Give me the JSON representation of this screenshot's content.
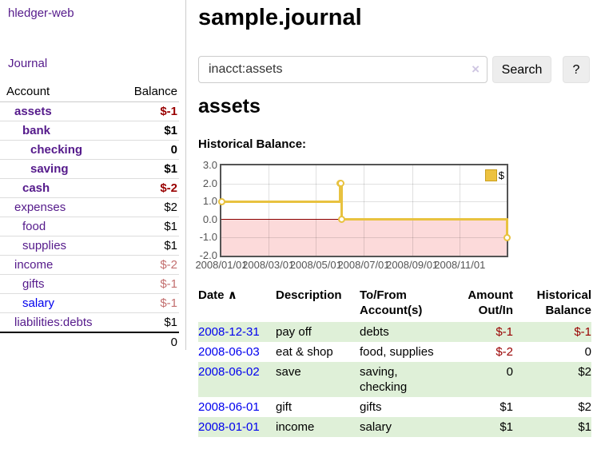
{
  "sidebar": {
    "app_title": "hledger-web",
    "nav": {
      "journal": "Journal"
    },
    "accounts": {
      "col_account": "Account",
      "col_balance": "Balance",
      "rows": [
        {
          "name": "assets",
          "balance": "$-1"
        },
        {
          "name": "bank",
          "balance": "$1"
        },
        {
          "name": "checking",
          "balance": "0"
        },
        {
          "name": "saving",
          "balance": "$1"
        },
        {
          "name": "cash",
          "balance": "$-2"
        },
        {
          "name": "expenses",
          "balance": "$2"
        },
        {
          "name": "food",
          "balance": "$1"
        },
        {
          "name": "supplies",
          "balance": "$1"
        },
        {
          "name": "income",
          "balance": "$-2"
        },
        {
          "name": "gifts",
          "balance": "$-1"
        },
        {
          "name": "salary",
          "balance": "$-1"
        },
        {
          "name": "liabilities:debts",
          "balance": "$1"
        }
      ],
      "total": "0"
    }
  },
  "main": {
    "title": "sample.journal",
    "search": {
      "value": "inacct:assets",
      "clear_icon": "×",
      "search_button": "Search",
      "help_button": "?"
    },
    "account_heading": "assets"
  },
  "chart_data": {
    "type": "line",
    "subtype": "step",
    "title": "Historical Balance:",
    "legend_label": "$",
    "legend_position": "top-right",
    "grid": true,
    "ylim": [
      -2,
      3
    ],
    "x_range_days": 365,
    "x_ticks": [
      {
        "label": "2008/01/01",
        "day": 0
      },
      {
        "label": "2008/03/01",
        "day": 60
      },
      {
        "label": "2008/05/01",
        "day": 121
      },
      {
        "label": "2008/07/01",
        "day": 182
      },
      {
        "label": "2008/09/01",
        "day": 244
      },
      {
        "label": "2008/11/01",
        "day": 305
      }
    ],
    "y_ticks": [
      {
        "label": "3.0",
        "value": 3
      },
      {
        "label": "2.0",
        "value": 2
      },
      {
        "label": "1.0",
        "value": 1
      },
      {
        "label": "0.0",
        "value": 0
      },
      {
        "label": "-1.0",
        "value": -1
      },
      {
        "label": "-2.0",
        "value": -2
      }
    ],
    "series": [
      {
        "name": "$",
        "color": "#e8c240",
        "points": [
          {
            "date": "2008-01-01",
            "day": 0,
            "value": 1
          },
          {
            "date": "2008-06-01",
            "day": 152,
            "value": 2
          },
          {
            "date": "2008-06-02",
            "day": 153,
            "value": 2
          },
          {
            "date": "2008-06-03",
            "day": 154,
            "value": 0
          },
          {
            "date": "2008-12-31",
            "day": 365,
            "value": -1
          }
        ]
      }
    ],
    "negative_region_color": "#fcdada",
    "zero_line_color": "#8b0000",
    "border_color": "#545454"
  },
  "transactions": {
    "sort_icon": "∧",
    "headers": [
      {
        "line1": "Date",
        "line2": ""
      },
      {
        "line1": "Description",
        "line2": ""
      },
      {
        "line1": "To/From",
        "line2": "Account(s)"
      },
      {
        "line1": "Amount",
        "line2": "Out/In"
      },
      {
        "line1": "Historical",
        "line2": "Balance"
      }
    ],
    "rows": [
      {
        "date": "2008-12-31",
        "description": "pay off",
        "accounts": "debts",
        "amount": "$-1",
        "balance": "$-1"
      },
      {
        "date": "2008-06-03",
        "description": "eat & shop",
        "accounts": "food, supplies",
        "amount": "$-2",
        "balance": "0"
      },
      {
        "date": "2008-06-02",
        "description": "save",
        "accounts": "saving,\nchecking",
        "amount": "0",
        "balance": "$2"
      },
      {
        "date": "2008-06-01",
        "description": "gift",
        "accounts": "gifts",
        "amount": "$1",
        "balance": "$2"
      },
      {
        "date": "2008-01-01",
        "description": "income",
        "accounts": "salary",
        "amount": "$1",
        "balance": "$1"
      }
    ]
  },
  "colors": {
    "link_purple": "#551a8b",
    "link_blue": "#0000ee",
    "negative_strong": "#990000",
    "negative_muted": "#c36f6f",
    "row_highlight_green": "#dff0d8",
    "chart_line_yellow": "#e8c240",
    "chart_negative_pink": "#fcdada",
    "chart_zero_line": "#8b0000",
    "chart_border": "#545454",
    "button_gray": "#ededed"
  }
}
